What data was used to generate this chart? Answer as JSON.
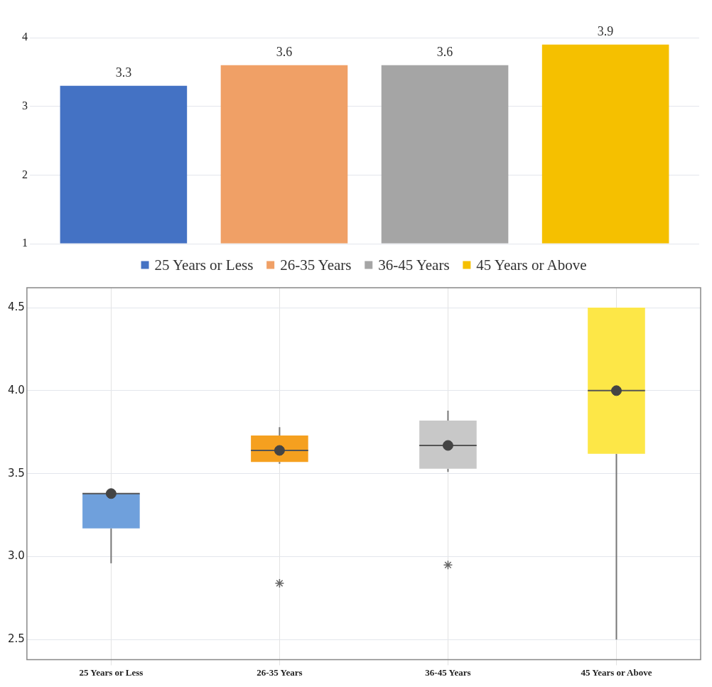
{
  "chart_data": [
    {
      "type": "bar",
      "categories": [
        null
      ],
      "series": [
        {
          "name": "25 Years or Less",
          "color": "#4472c4",
          "values": [
            3.3
          ]
        },
        {
          "name": "26-35 Years",
          "color": "#f0a066",
          "values": [
            3.6
          ]
        },
        {
          "name": "36-45 Years",
          "color": "#a5a5a5",
          "values": [
            3.6
          ]
        },
        {
          "name": "45 Years or Above",
          "color": "#f5c000",
          "values": [
            3.9
          ]
        }
      ],
      "ylim": [
        1,
        4
      ],
      "yticks": [
        1,
        2,
        3,
        4
      ],
      "grid": "y",
      "legend": "bottom",
      "data_labels": true
    },
    {
      "type": "box",
      "categories": [
        "25 Years or Less",
        "26-35 Years",
        "36-45 Years",
        "45 Years or Above"
      ],
      "colors": [
        "#6fa0dc",
        "#f5a01f",
        "#c8c8c8",
        "#fde747"
      ],
      "boxes": [
        {
          "low": 2.96,
          "q1": 3.17,
          "median": 3.38,
          "q3": 3.38,
          "high": 3.38,
          "mean": 3.38
        },
        {
          "low": 3.56,
          "q1": 3.57,
          "median": 3.64,
          "q3": 3.73,
          "high": 3.78,
          "mean": 3.64,
          "outliers": [
            2.84
          ]
        },
        {
          "low": 3.51,
          "q1": 3.53,
          "median": 3.67,
          "q3": 3.82,
          "high": 3.88,
          "mean": 3.67,
          "outliers": [
            2.95
          ]
        },
        {
          "low": 2.5,
          "q1": 3.62,
          "median": 4.0,
          "q3": 4.5,
          "high": 4.5,
          "mean": 4.0
        }
      ],
      "ylim": [
        2.38,
        4.62
      ],
      "yticks": [
        {
          "value": 2.5,
          "label": "2.5"
        },
        {
          "value": 3,
          "label": "3.0"
        },
        {
          "value": 3.5,
          "label": "3.5"
        },
        {
          "value": 4,
          "label": "4.0"
        },
        {
          "value": 4.5,
          "label": "4.5"
        }
      ],
      "grid": true
    }
  ]
}
